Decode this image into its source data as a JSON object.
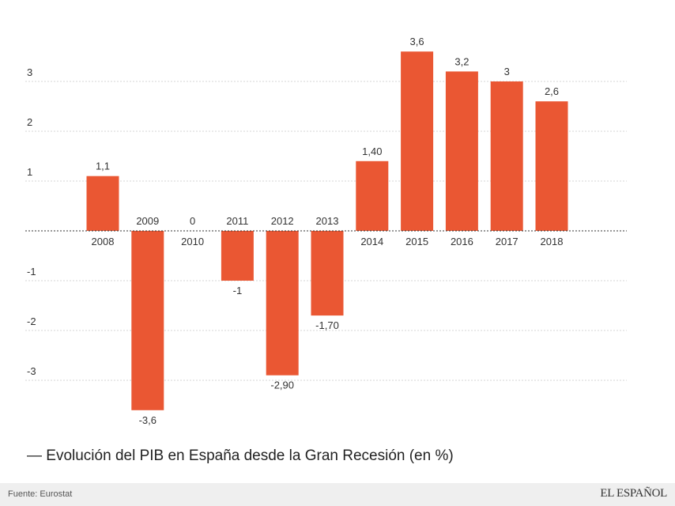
{
  "chart_data": {
    "type": "bar",
    "title": "— Evolución del PIB en España desde la Gran Recesión (en %)",
    "categories": [
      "2008",
      "2009",
      "2010",
      "2011",
      "2012",
      "2013",
      "2014",
      "2015",
      "2016",
      "2017",
      "2018"
    ],
    "values": [
      1.1,
      -3.6,
      0,
      -1,
      -2.9,
      -1.7,
      1.4,
      3.6,
      3.2,
      3,
      2.6
    ],
    "value_labels": [
      "1,1",
      "-3,6",
      "0",
      "-1",
      "-2,90",
      "-1,70",
      "1,40",
      "3,6",
      "3,2",
      "3",
      "2,6"
    ],
    "y_ticks": [
      3,
      2,
      1,
      -1,
      -2,
      -3
    ],
    "y_tick_labels": [
      "3",
      "2",
      "1",
      "-1",
      "-2",
      "-3"
    ],
    "ylim": [
      -3.6,
      3.6
    ],
    "bar_color": "#ea5733",
    "grid": true,
    "xlabel": "",
    "ylabel": ""
  },
  "footer": {
    "source": "Fuente: Eurostat",
    "brand": "EL ESPAÑOL"
  }
}
